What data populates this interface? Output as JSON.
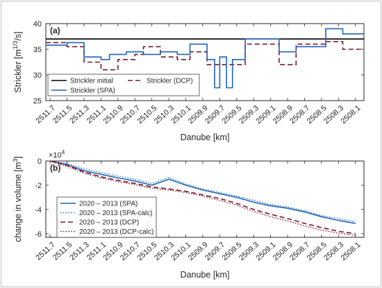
{
  "chart_data": [
    {
      "type": "line",
      "panel_label": "(a)",
      "xlabel": "Danube [km]",
      "ylabel_parts": [
        "Strickler [m",
        "1/3",
        "/s]"
      ],
      "ylim": [
        25,
        40
      ],
      "yticks": [
        25,
        30,
        35,
        40
      ],
      "xlim": [
        2511.75,
        2508.0
      ],
      "x_ticks": [
        2511.7,
        2511.5,
        2511.3,
        2511.1,
        2510.9,
        2510.7,
        2510.5,
        2510.3,
        2510.1,
        2509.9,
        2509.7,
        2509.5,
        2509.3,
        2509.1,
        2508.9,
        2508.7,
        2508.5,
        2508.3,
        2508.1
      ],
      "x_tick_labels": [
        "2511.7",
        "2511.5",
        "2511.3",
        "2511.1",
        "2510.9",
        "2510.7",
        "2510.5",
        "2510.3",
        "2510.1",
        "2509.9",
        "2509.7",
        "2509.5",
        "2509.3",
        "2509.1",
        "2508.9",
        "2508.7",
        "2508.5",
        "2508.3",
        "2508.1"
      ],
      "grid": false,
      "legend_position": "bottom-left",
      "legend_columns": 2,
      "series": [
        {
          "name": "Strickler initial",
          "color": "#000000",
          "dash": "solid",
          "points": [
            [
              2511.75,
              37
            ],
            [
              2508.0,
              37
            ]
          ]
        },
        {
          "name": "Strickler (DCP)",
          "color": "#7b1428",
          "dash": "dashed",
          "points": [
            [
              2511.75,
              36.3
            ],
            [
              2511.5,
              36.3
            ],
            [
              2511.5,
              35.5
            ],
            [
              2511.3,
              35.5
            ],
            [
              2511.3,
              32.5
            ],
            [
              2511.1,
              32.5
            ],
            [
              2511.1,
              31
            ],
            [
              2510.9,
              31
            ],
            [
              2510.9,
              33
            ],
            [
              2510.7,
              33
            ],
            [
              2510.7,
              34
            ],
            [
              2510.6,
              34
            ],
            [
              2510.6,
              35.5
            ],
            [
              2510.4,
              35.5
            ],
            [
              2510.4,
              33.5
            ],
            [
              2510.2,
              33.5
            ],
            [
              2510.2,
              33
            ],
            [
              2510.05,
              33
            ],
            [
              2510.05,
              34.5
            ],
            [
              2509.85,
              34.5
            ],
            [
              2509.85,
              32
            ],
            [
              2509.4,
              32
            ],
            [
              2509.4,
              36
            ],
            [
              2509.0,
              36
            ],
            [
              2509.0,
              32
            ],
            [
              2508.8,
              32
            ],
            [
              2508.8,
              36
            ],
            [
              2508.45,
              36
            ],
            [
              2508.45,
              36.5
            ],
            [
              2508.25,
              36.5
            ],
            [
              2508.25,
              35
            ],
            [
              2508.0,
              35
            ]
          ]
        },
        {
          "name": "Strickler (SPA)",
          "color": "#1f63b6",
          "dash": "solid",
          "points": [
            [
              2511.75,
              35.8
            ],
            [
              2511.5,
              35.8
            ],
            [
              2511.5,
              36.3
            ],
            [
              2511.3,
              36.3
            ],
            [
              2511.3,
              33.5
            ],
            [
              2511.1,
              33.5
            ],
            [
              2511.1,
              33
            ],
            [
              2511.0,
              33
            ],
            [
              2511.0,
              34
            ],
            [
              2510.8,
              34
            ],
            [
              2510.8,
              34.5
            ],
            [
              2510.6,
              34.5
            ],
            [
              2510.6,
              34
            ],
            [
              2510.4,
              34
            ],
            [
              2510.4,
              34.5
            ],
            [
              2510.2,
              34.5
            ],
            [
              2510.2,
              34
            ],
            [
              2510.05,
              34
            ],
            [
              2510.05,
              36
            ],
            [
              2509.85,
              36
            ],
            [
              2509.85,
              33
            ],
            [
              2509.76,
              33
            ],
            [
              2509.76,
              27.5
            ],
            [
              2509.7,
              27.5
            ],
            [
              2509.7,
              33.5
            ],
            [
              2509.62,
              33.5
            ],
            [
              2509.62,
              27.5
            ],
            [
              2509.55,
              27.5
            ],
            [
              2509.55,
              33
            ],
            [
              2509.4,
              33
            ],
            [
              2509.4,
              37
            ],
            [
              2509.0,
              37
            ],
            [
              2509.0,
              34.5
            ],
            [
              2508.8,
              34.5
            ],
            [
              2508.8,
              35.5
            ],
            [
              2508.6,
              35.5
            ],
            [
              2508.6,
              35.5
            ],
            [
              2508.45,
              35.5
            ],
            [
              2508.45,
              39
            ],
            [
              2508.25,
              39
            ],
            [
              2508.25,
              38
            ],
            [
              2508.0,
              38
            ]
          ]
        }
      ]
    },
    {
      "type": "line",
      "panel_label": "(b)",
      "xlabel": "Danube [km]",
      "ylabel_parts": [
        "change in volume [m",
        "3",
        "]"
      ],
      "exponent_label": "×10",
      "exponent_power": "4",
      "ylim": [
        -6.3,
        0
      ],
      "yticks": [
        -6,
        -4,
        -2,
        0
      ],
      "ytick_labels": [
        "-6",
        "-4",
        "-2",
        "0"
      ],
      "xlim": [
        2511.75,
        2508.0
      ],
      "x_ticks": [
        2511.7,
        2511.5,
        2511.3,
        2511.1,
        2510.9,
        2510.7,
        2510.5,
        2510.3,
        2510.1,
        2509.9,
        2509.7,
        2509.5,
        2509.3,
        2509.1,
        2508.9,
        2508.7,
        2508.5,
        2508.3,
        2508.1
      ],
      "x_tick_labels": [
        "2511.7",
        "2511.5",
        "2511.3",
        "2511.1",
        "2510.9",
        "2510.7",
        "2510.5",
        "2510.3",
        "2510.1",
        "2509.9",
        "2509.7",
        "2509.5",
        "2509.3",
        "2509.1",
        "2508.9",
        "2508.7",
        "2508.5",
        "2508.3",
        "2508.1"
      ],
      "grid": false,
      "legend_position": "bottom-left",
      "legend_columns": 1,
      "series": [
        {
          "name": "2020 – 2013 (SPA)",
          "color": "#1f63b6",
          "dash": "solid",
          "points": [
            [
              2511.7,
              0
            ],
            [
              2511.5,
              -0.3
            ],
            [
              2511.3,
              -0.8
            ],
            [
              2511.1,
              -1.1
            ],
            [
              2510.9,
              -1.4
            ],
            [
              2510.7,
              -1.65
            ],
            [
              2510.5,
              -2.0
            ],
            [
              2510.3,
              -1.5
            ],
            [
              2510.1,
              -2.0
            ],
            [
              2509.9,
              -2.4
            ],
            [
              2509.7,
              -2.7
            ],
            [
              2509.5,
              -3.0
            ],
            [
              2509.3,
              -3.4
            ],
            [
              2509.1,
              -3.7
            ],
            [
              2508.9,
              -3.9
            ],
            [
              2508.7,
              -4.2
            ],
            [
              2508.5,
              -4.6
            ],
            [
              2508.3,
              -4.9
            ],
            [
              2508.1,
              -5.15
            ]
          ]
        },
        {
          "name": "2020 – 2013 (SPA-calc)",
          "color": "#2a7ad4",
          "dash": "dotted",
          "points": [
            [
              2511.7,
              0
            ],
            [
              2511.5,
              -0.2
            ],
            [
              2511.3,
              -0.65
            ],
            [
              2511.1,
              -0.95
            ],
            [
              2510.9,
              -1.25
            ],
            [
              2510.7,
              -1.5
            ],
            [
              2510.5,
              -1.85
            ],
            [
              2510.3,
              -1.35
            ],
            [
              2510.1,
              -1.9
            ],
            [
              2509.9,
              -2.3
            ],
            [
              2509.7,
              -2.6
            ],
            [
              2509.5,
              -2.9
            ],
            [
              2509.3,
              -3.25
            ],
            [
              2509.1,
              -3.6
            ],
            [
              2508.9,
              -3.8
            ],
            [
              2508.7,
              -4.1
            ],
            [
              2508.5,
              -4.5
            ],
            [
              2508.3,
              -4.75
            ],
            [
              2508.1,
              -5.0
            ]
          ]
        },
        {
          "name": "2020 – 2013 (DCP)",
          "color": "#7b1428",
          "dash": "dashed",
          "points": [
            [
              2511.7,
              0
            ],
            [
              2511.5,
              -0.35
            ],
            [
              2511.3,
              -0.9
            ],
            [
              2511.1,
              -1.3
            ],
            [
              2510.9,
              -1.6
            ],
            [
              2510.7,
              -1.85
            ],
            [
              2510.5,
              -2.15
            ],
            [
              2510.3,
              -2.3
            ],
            [
              2510.1,
              -2.5
            ],
            [
              2509.9,
              -2.8
            ],
            [
              2509.7,
              -3.1
            ],
            [
              2509.5,
              -3.5
            ],
            [
              2509.3,
              -4.0
            ],
            [
              2509.1,
              -4.4
            ],
            [
              2508.9,
              -4.75
            ],
            [
              2508.7,
              -5.15
            ],
            [
              2508.5,
              -5.5
            ],
            [
              2508.3,
              -5.8
            ],
            [
              2508.1,
              -6.0
            ]
          ]
        },
        {
          "name": "2020 – 2013 (DCP-calc)",
          "color": "#8b1a2e",
          "dash": "dotted",
          "points": [
            [
              2511.7,
              0
            ],
            [
              2511.5,
              -0.45
            ],
            [
              2511.3,
              -1.0
            ],
            [
              2511.1,
              -1.4
            ],
            [
              2510.9,
              -1.7
            ],
            [
              2510.7,
              -1.95
            ],
            [
              2510.5,
              -2.25
            ],
            [
              2510.3,
              -2.4
            ],
            [
              2510.1,
              -2.6
            ],
            [
              2509.9,
              -2.9
            ],
            [
              2509.7,
              -3.25
            ],
            [
              2509.5,
              -3.65
            ],
            [
              2509.3,
              -4.15
            ],
            [
              2509.1,
              -4.6
            ],
            [
              2508.9,
              -4.95
            ],
            [
              2508.7,
              -5.35
            ],
            [
              2508.5,
              -5.7
            ],
            [
              2508.3,
              -5.95
            ],
            [
              2508.1,
              -6.15
            ]
          ]
        }
      ]
    }
  ]
}
